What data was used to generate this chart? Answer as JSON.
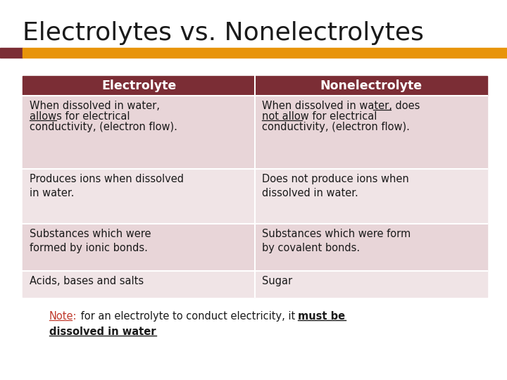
{
  "title": "Electrolytes vs. Nonelectrolytes",
  "bg_color": "#ffffff",
  "title_color": "#1a1a1a",
  "title_fontsize": 26,
  "accent_dark": "#7B2D35",
  "accent_orange": "#E8940A",
  "header_bg": "#7B2D35",
  "header_fg": "#ffffff",
  "header_fontsize": 12.5,
  "row_bg_a": "#E8D5D8",
  "row_bg_b": "#F0E4E6",
  "cell_color": "#1a1a1a",
  "cell_fontsize": 10.5,
  "note_red": "#C0392B",
  "note_black": "#1a1a1a",
  "note_fontsize": 10.5,
  "col_headers": [
    "Electrolyte",
    "Nonelectrolyte"
  ],
  "row0_col0_lines": [
    "When dissolved in water,",
    "allows for electrical",
    "conductivity, (electron flow)."
  ],
  "row0_col1_lines": [
    "When dissolved in water, does",
    "not allow for electrical",
    "conductivity, (electron flow)."
  ],
  "row1_col0": "Produces ions when dissolved\nin water.",
  "row1_col1": "Does not produce ions when\ndissolved in water.",
  "row2_col0": "Substances which were\nformed by ionic bonds.",
  "row2_col1": "Substances which were form\nby covalent bonds.",
  "row3_col0": "Acids, bases and salts",
  "row3_col1": "Sugar",
  "note_part1": "Note:",
  "note_part2": " for an electrolyte to conduct electricity, it ",
  "note_part3": "must be",
  "note_part4": "dissolved in water"
}
